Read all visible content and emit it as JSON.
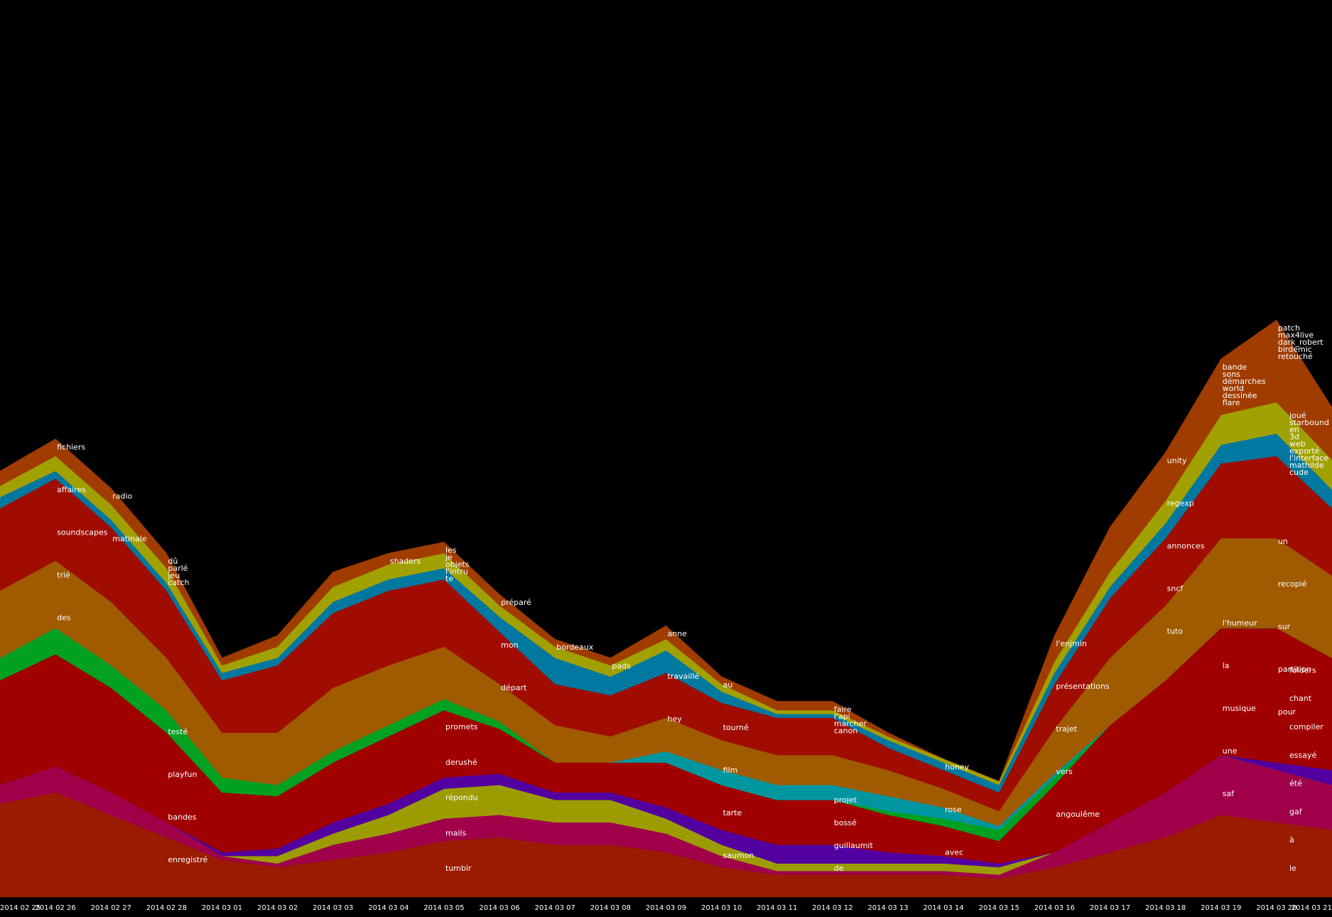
{
  "chart_data": {
    "type": "stream",
    "categories": [
      "2014 02 25",
      "2014 02 26",
      "2014 02 27",
      "2014 02 28",
      "2014 03 01",
      "2014 03 02",
      "2014 03 03",
      "2014 03 04",
      "2014 03 05",
      "2014 03 06",
      "2014 03 07",
      "2014 03 08",
      "2014 03 09",
      "2014 03 10",
      "2014 03 11",
      "2014 03 12",
      "2014 03 13",
      "2014 03 14",
      "2014 03 15",
      "2014 03 16",
      "2014 03 17",
      "2014 03 18",
      "2014 03 19",
      "2014 03 20",
      "2014 03 21"
    ],
    "ylim": [
      0,
      1200
    ],
    "series": [
      {
        "color": "#9a1b00",
        "values": [
          125,
          140,
          110,
          80,
          50,
          40,
          50,
          60,
          75,
          80,
          70,
          70,
          60,
          40,
          30,
          30,
          30,
          30,
          25,
          40,
          60,
          80,
          110,
          100,
          90
        ]
      },
      {
        "color": "#a0004a",
        "values": [
          25,
          35,
          30,
          20,
          5,
          5,
          20,
          25,
          30,
          30,
          30,
          30,
          25,
          15,
          5,
          5,
          5,
          5,
          5,
          20,
          40,
          60,
          80,
          70,
          60
        ]
      },
      {
        "color": "#9c9c00",
        "values": [
          0,
          0,
          0,
          0,
          0,
          10,
          15,
          25,
          40,
          40,
          30,
          30,
          20,
          15,
          10,
          10,
          10,
          10,
          10,
          0,
          0,
          0,
          0,
          0,
          0
        ]
      },
      {
        "color": "#5200a0",
        "values": [
          0,
          0,
          0,
          0,
          5,
          10,
          15,
          15,
          15,
          15,
          10,
          10,
          15,
          20,
          25,
          25,
          15,
          10,
          5,
          0,
          0,
          0,
          0,
          10,
          20
        ]
      },
      {
        "color": "#a00000",
        "values": [
          140,
          150,
          140,
          120,
          80,
          70,
          80,
          90,
          90,
          60,
          40,
          40,
          60,
          60,
          60,
          60,
          50,
          40,
          30,
          90,
          130,
          150,
          170,
          180,
          150
        ]
      },
      {
        "color": "#00a020",
        "values": [
          30,
          35,
          30,
          30,
          20,
          15,
          15,
          15,
          15,
          10,
          0,
          0,
          0,
          0,
          0,
          0,
          5,
          10,
          15,
          10,
          0,
          0,
          0,
          0,
          0
        ]
      },
      {
        "color": "#0096a0",
        "values": [
          0,
          0,
          0,
          0,
          0,
          0,
          0,
          0,
          0,
          0,
          0,
          0,
          15,
          20,
          20,
          20,
          20,
          15,
          5,
          5,
          0,
          0,
          0,
          0,
          0
        ]
      },
      {
        "color": "#a05a00",
        "values": [
          90,
          90,
          85,
          70,
          60,
          70,
          85,
          80,
          70,
          50,
          50,
          35,
          45,
          40,
          40,
          40,
          35,
          25,
          20,
          60,
          90,
          100,
          120,
          120,
          110
        ]
      },
      {
        "color": "#a00c00",
        "values": [
          110,
          110,
          100,
          90,
          70,
          90,
          100,
          100,
          90,
          70,
          55,
          55,
          60,
          50,
          50,
          50,
          30,
          25,
          25,
          60,
          80,
          90,
          100,
          110,
          90
        ]
      },
      {
        "color": "#0078a0",
        "values": [
          15,
          10,
          10,
          10,
          10,
          10,
          15,
          15,
          15,
          20,
          35,
          25,
          30,
          15,
          5,
          5,
          10,
          10,
          10,
          15,
          15,
          20,
          25,
          30,
          25
        ]
      },
      {
        "color": "#a0a000",
        "values": [
          15,
          20,
          20,
          20,
          10,
          15,
          20,
          20,
          20,
          15,
          15,
          15,
          15,
          10,
          5,
          5,
          5,
          5,
          5,
          15,
          20,
          30,
          40,
          42,
          40
        ]
      },
      {
        "color": "#a03c00",
        "values": [
          20,
          23,
          22,
          20,
          10,
          15,
          20,
          15,
          15,
          15,
          10,
          10,
          18,
          10,
          12,
          12,
          5,
          0,
          0,
          35,
          60,
          65,
          75,
          110,
          70
        ]
      }
    ],
    "labels": [
      [],
      [
        "fichiers",
        "affaires",
        "soundscapes",
        "trié",
        "des"
      ],
      [
        "radio",
        "matinale"
      ],
      [
        "dû",
        "parlé",
        "jeu",
        "catch",
        "testé",
        "playfun",
        "bandes",
        "enregistré"
      ],
      [],
      [],
      [],
      [
        "shaders"
      ],
      [
        "les",
        "je",
        "objets",
        "l'intru",
        "te",
        "promets",
        "derushé",
        "répondu",
        "mails",
        "tumblr"
      ],
      [
        "préparé",
        "mon",
        "départ"
      ],
      [
        "bordeaux"
      ],
      [
        "pads"
      ],
      [
        "anne",
        "travaillé",
        "hey"
      ],
      [
        "au",
        "tourné",
        "film",
        "tarte",
        "saumon"
      ],
      [],
      [
        "faire",
        "l'api",
        "marcher",
        "canon",
        "projet",
        "bossé",
        "guillaumit",
        "de"
      ],
      [],
      [
        "honey",
        "rose",
        "avec"
      ],
      [],
      [
        "l'enjmin",
        "présentations",
        "trajet",
        "vers",
        "angoulême"
      ],
      [],
      [
        "unity",
        "regexp",
        "annonces",
        "sncf",
        "tuto"
      ],
      [
        "bande",
        "sons",
        "démarches",
        "world",
        "dessinée",
        "flare",
        "l'humeur",
        "la",
        "musique",
        "une",
        "saf"
      ],
      [
        "patch",
        "max4live",
        "dark_robert",
        "birdemic",
        "retouché",
        "un",
        "recopié",
        "sur",
        "partition",
        "pour"
      ],
      [
        "joué",
        "starbound",
        "en",
        "3d",
        "web",
        "exporté",
        "l'interface",
        "mathilde",
        "cude",
        "folders",
        "chant",
        "compiler",
        "essayé",
        "été",
        "gaf",
        "à",
        "le"
      ]
    ]
  }
}
